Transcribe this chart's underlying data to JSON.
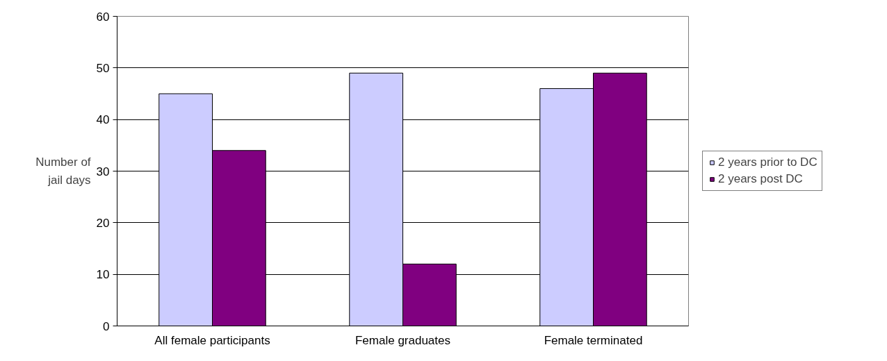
{
  "chart_data": {
    "type": "bar",
    "ylabel": "Number of jail days",
    "categories": [
      "All female participants",
      "Female graduates",
      "Female terminated"
    ],
    "series": [
      {
        "name": "2 years prior to DC",
        "color": "#ccccff",
        "values": [
          45,
          49,
          46
        ]
      },
      {
        "name": "2 years post DC",
        "color": "#800080",
        "values": [
          34,
          12,
          49
        ]
      }
    ],
    "ylim": [
      0,
      60
    ],
    "yticks": [
      0,
      10,
      20,
      30,
      40,
      50,
      60
    ],
    "grid": "y",
    "legend": "right"
  }
}
